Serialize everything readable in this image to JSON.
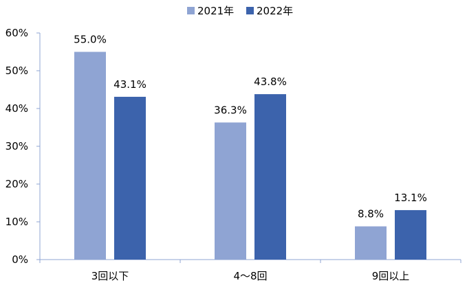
{
  "chart_data": {
    "type": "bar",
    "categories": [
      "3回以下",
      "4～8回",
      "9回以上"
    ],
    "series": [
      {
        "name": "2021年",
        "values": [
          55.0,
          36.3,
          8.8
        ],
        "labels": [
          "55.0%",
          "36.3%",
          "8.8%"
        ],
        "color": "#8FA4D3"
      },
      {
        "name": "2022年",
        "values": [
          43.1,
          43.8,
          13.1
        ],
        "labels": [
          "43.1%",
          "43.8%",
          "13.1%"
        ],
        "color": "#3C63AC"
      }
    ],
    "ylim": [
      0,
      60
    ],
    "yticks": [
      0,
      10,
      20,
      30,
      40,
      50,
      60
    ],
    "ytick_labels": [
      "0%",
      "10%",
      "20%",
      "30%",
      "40%",
      "50%",
      "60%"
    ],
    "unit": "%",
    "grid": false,
    "legend_position": "top-center",
    "axis_color": "#8FA4D3"
  }
}
